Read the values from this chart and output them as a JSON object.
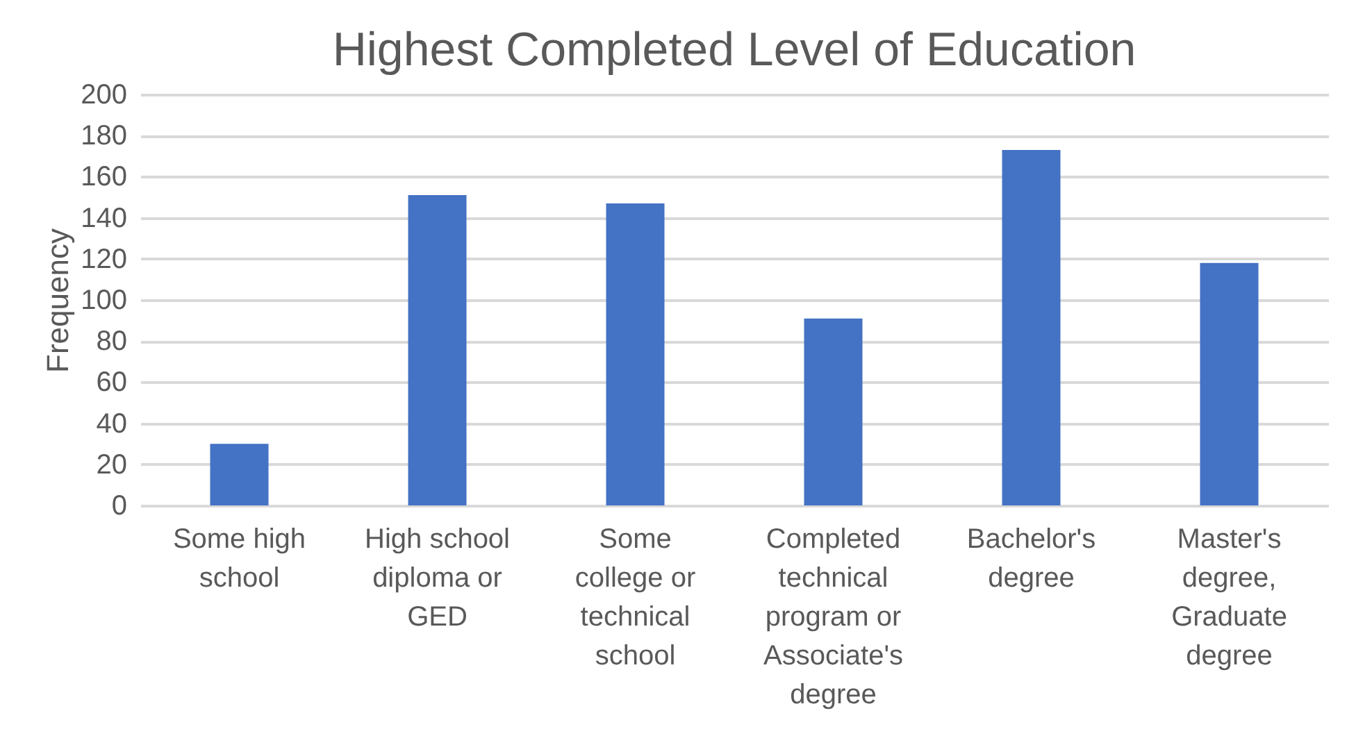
{
  "chart_data": {
    "type": "bar",
    "title": "Highest Completed Level of Education",
    "ylabel": "Frequency",
    "categories": [
      "Some high school",
      "High school diploma or GED",
      "Some college or technical school",
      "Completed technical program or Associate's degree",
      "Bachelor's degree",
      "Master's degree, Graduate degree"
    ],
    "values": [
      30,
      151,
      147,
      91,
      173,
      118
    ],
    "color": "#4472c4",
    "ylim": [
      0,
      200
    ],
    "yticks": [
      0,
      20,
      40,
      60,
      80,
      100,
      120,
      140,
      160,
      180,
      200
    ],
    "grid": "y"
  }
}
